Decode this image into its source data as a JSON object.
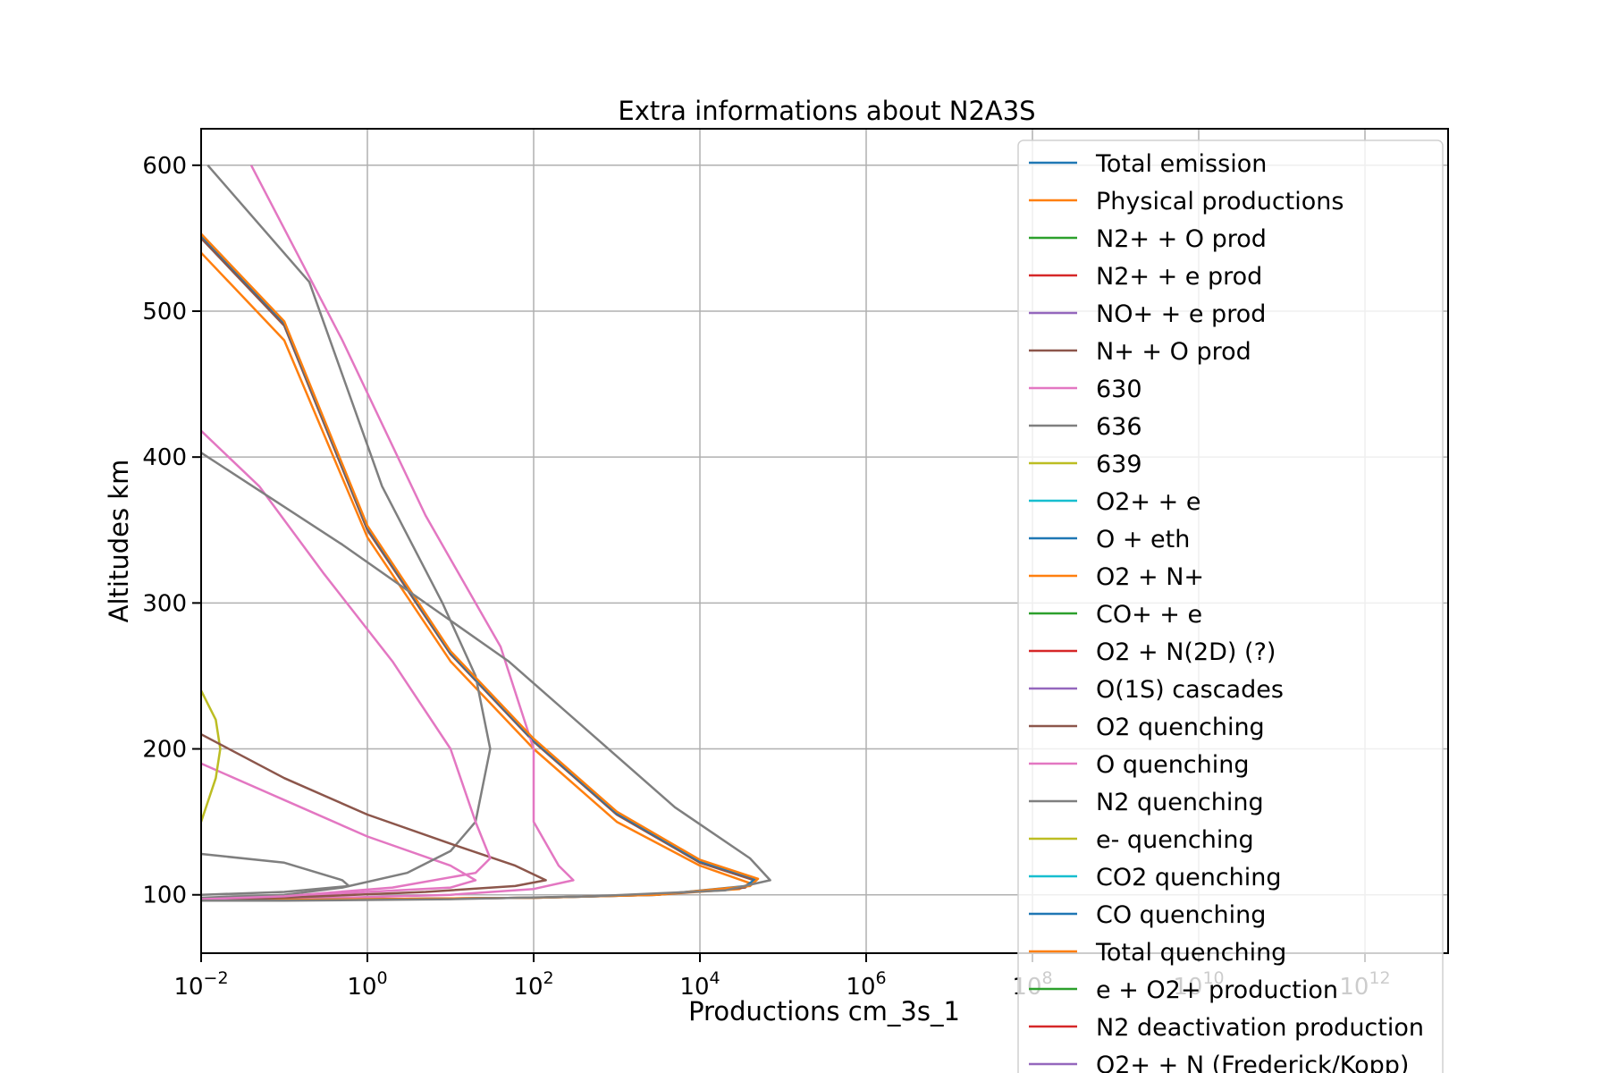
{
  "chart_data": {
    "type": "line",
    "title": "Extra informations about N2A3S",
    "xlabel": "Productions cm_3s_1",
    "ylabel": "Altitudes km",
    "xscale": "log",
    "xlim": [
      0.01,
      10000000000000.0
    ],
    "ylim": [
      60,
      625
    ],
    "grid": true,
    "legend_position": "upper-right",
    "x_ticks": [
      {
        "value": 0.01,
        "base": "10",
        "exp": "−2"
      },
      {
        "value": 1,
        "base": "10",
        "exp": "0"
      },
      {
        "value": 100,
        "base": "10",
        "exp": "2"
      },
      {
        "value": 10000,
        "base": "10",
        "exp": "4"
      },
      {
        "value": 1000000,
        "base": "10",
        "exp": "6"
      },
      {
        "value": 100000000,
        "base": "10",
        "exp": "8"
      },
      {
        "value": 10000000000,
        "base": "10",
        "exp": "10"
      },
      {
        "value": 1000000000000,
        "base": "10",
        "exp": "12"
      }
    ],
    "y_ticks": [
      100,
      200,
      300,
      400,
      500,
      600
    ],
    "series": [
      {
        "name": "Total emission",
        "color": "#1f77b4",
        "points": []
      },
      {
        "name": "Physical productions",
        "color": "#ff7f0e",
        "points": [
          [
            0.01,
            540
          ],
          [
            0.1,
            480
          ],
          [
            1,
            345
          ],
          [
            10,
            260
          ],
          [
            100,
            200
          ],
          [
            1000,
            150
          ],
          [
            10000,
            120
          ],
          [
            40000,
            108
          ],
          [
            30000,
            104
          ],
          [
            3000,
            100
          ],
          [
            100,
            98
          ],
          [
            1,
            97
          ],
          [
            0.01,
            96
          ]
        ]
      },
      {
        "name": "N2+ + O prod",
        "color": "#2ca02c",
        "points": []
      },
      {
        "name": "N2+ + e prod",
        "color": "#d62728",
        "points": []
      },
      {
        "name": "NO+ + e prod",
        "color": "#9467bd",
        "points": []
      },
      {
        "name": "N+ + O prod",
        "color": "#8c564b",
        "points": [
          [
            0.01,
            550
          ],
          [
            0.1,
            490
          ],
          [
            1,
            350
          ],
          [
            10,
            265
          ],
          [
            100,
            205
          ],
          [
            1000,
            155
          ],
          [
            10000,
            122
          ],
          [
            45000,
            110
          ],
          [
            35000,
            105
          ],
          [
            3000,
            100
          ],
          [
            100,
            98
          ],
          [
            1,
            97
          ],
          [
            0.01,
            96
          ]
        ]
      },
      {
        "name": "630",
        "color": "#e377c2",
        "points": [
          [
            0.04,
            600
          ],
          [
            0.5,
            480
          ],
          [
            5,
            360
          ],
          [
            40,
            270
          ],
          [
            100,
            200
          ],
          [
            100,
            150
          ],
          [
            200,
            120
          ],
          [
            300,
            110
          ],
          [
            100,
            104
          ],
          [
            10,
            100
          ],
          [
            0.1,
            97
          ],
          [
            0.01,
            96
          ]
        ]
      },
      {
        "name": "636",
        "color": "#7f7f7f",
        "points": [
          [
            0.012,
            600
          ],
          [
            0.2,
            520
          ],
          [
            1.5,
            380
          ],
          [
            8,
            300
          ],
          [
            20,
            250
          ],
          [
            30,
            200
          ],
          [
            20,
            150
          ],
          [
            10,
            130
          ],
          [
            3,
            115
          ],
          [
            0.5,
            105
          ],
          [
            0.1,
            100
          ],
          [
            0.01,
            98
          ]
        ]
      },
      {
        "name": "639",
        "color": "#bcbd22",
        "points": [
          [
            0.01,
            240
          ],
          [
            0.015,
            220
          ],
          [
            0.017,
            200
          ],
          [
            0.015,
            180
          ],
          [
            0.01,
            150
          ]
        ]
      },
      {
        "name": "O2+ + e",
        "color": "#17becf",
        "points": []
      },
      {
        "name": "O + eth",
        "color": "#1f77b4",
        "points": [
          [
            0.01,
            552
          ],
          [
            0.1,
            492
          ],
          [
            1,
            352
          ],
          [
            10,
            266
          ],
          [
            100,
            206
          ],
          [
            1000,
            156
          ],
          [
            10000,
            123
          ],
          [
            47000,
            111
          ],
          [
            36000,
            106
          ],
          [
            3000,
            100
          ],
          [
            100,
            98
          ],
          [
            1,
            97
          ],
          [
            0.01,
            96
          ]
        ]
      },
      {
        "name": "O2 + N+",
        "color": "#ff7f0e",
        "points": [
          [
            0.01,
            553
          ],
          [
            0.1,
            493
          ],
          [
            1,
            353
          ],
          [
            10,
            267
          ],
          [
            100,
            207
          ],
          [
            1000,
            157
          ],
          [
            10000,
            124
          ],
          [
            50000,
            111
          ],
          [
            40000,
            106
          ],
          [
            3000,
            100
          ],
          [
            100,
            98
          ],
          [
            1,
            97
          ],
          [
            0.01,
            96
          ]
        ]
      },
      {
        "name": "CO+ + e",
        "color": "#2ca02c",
        "points": []
      },
      {
        "name": "O2 + N(2D) (?)",
        "color": "#d62728",
        "points": []
      },
      {
        "name": "O(1S) cascades",
        "color": "#9467bd",
        "points": []
      },
      {
        "name": "O2 quenching",
        "color": "#8c564b",
        "points": [
          [
            0.01,
            210
          ],
          [
            0.1,
            180
          ],
          [
            1,
            155
          ],
          [
            10,
            135
          ],
          [
            60,
            120
          ],
          [
            140,
            110
          ],
          [
            60,
            106
          ],
          [
            5,
            102
          ],
          [
            0.1,
            98
          ],
          [
            0.01,
            96
          ]
        ]
      },
      {
        "name": "O quenching",
        "color": "#e377c2",
        "points": [
          [
            0.01,
            418
          ],
          [
            0.05,
            380
          ],
          [
            0.3,
            320
          ],
          [
            2,
            260
          ],
          [
            10,
            200
          ],
          [
            20,
            150
          ],
          [
            30,
            125
          ],
          [
            20,
            115
          ],
          [
            2,
            105
          ],
          [
            0.1,
            99
          ],
          [
            0.01,
            97
          ]
        ]
      },
      {
        "name": "N2 quenching",
        "color": "#7f7f7f",
        "points": [
          [
            0.01,
            403
          ],
          [
            0.5,
            340
          ],
          [
            5,
            300
          ],
          [
            50,
            260
          ],
          [
            500,
            210
          ],
          [
            5000,
            160
          ],
          [
            40000,
            125
          ],
          [
            70000,
            110
          ],
          [
            20000,
            103
          ],
          [
            500,
            99
          ],
          [
            10,
            97
          ],
          [
            0.1,
            96
          ],
          [
            0.01,
            96
          ]
        ]
      },
      {
        "name": "e- quenching",
        "color": "#bcbd22",
        "points": []
      },
      {
        "name": "CO2 quenching",
        "color": "#17becf",
        "points": []
      },
      {
        "name": "CO quenching",
        "color": "#1f77b4",
        "points": []
      },
      {
        "name": "Total quenching",
        "color": "#ff7f0e",
        "points": []
      },
      {
        "name": "e + O2+ production",
        "color": "#2ca02c",
        "points": []
      },
      {
        "name": "N2 deactivation production",
        "color": "#d62728",
        "points": []
      },
      {
        "name": "O2+ + N (Frederick/Kopp)",
        "color": "#9467bd",
        "points": []
      }
    ],
    "extra_series": [
      {
        "color": "#e377c2",
        "points": [
          [
            0.01,
            190
          ],
          [
            0.1,
            165
          ],
          [
            1,
            140
          ],
          [
            10,
            120
          ],
          [
            20,
            110
          ],
          [
            10,
            105
          ],
          [
            1,
            102
          ],
          [
            0.1,
            99
          ],
          [
            0.01,
            97
          ]
        ]
      },
      {
        "color": "#7f7f7f",
        "points": [
          [
            0.01,
            128
          ],
          [
            0.1,
            122
          ],
          [
            0.5,
            110
          ],
          [
            0.6,
            106
          ],
          [
            0.1,
            102
          ],
          [
            0.01,
            100
          ]
        ]
      }
    ]
  }
}
